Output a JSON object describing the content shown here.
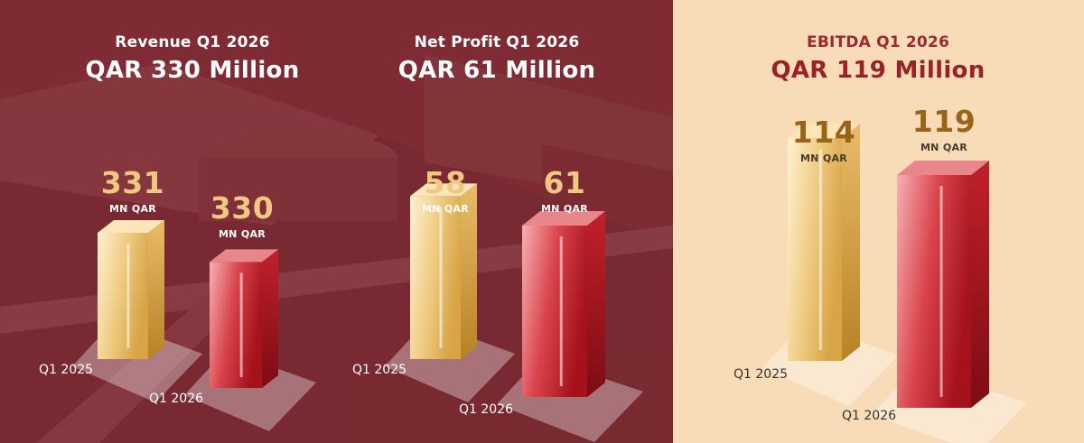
{
  "colors": {
    "maroon_bg": "#7e2c33",
    "cream_bg": "#f8dcb8",
    "gold_bar": "#e5b55e",
    "red_bar": "#b5222b",
    "accent_text_gold": "#f1c882",
    "accent_text_red": "#9a2029"
  },
  "chart_data": [
    {
      "type": "bar",
      "title": "Revenue Q1 2026",
      "subtitle": "QAR 330 Million",
      "categories": [
        "Q1 2025",
        "Q1 2026"
      ],
      "values": [
        331,
        330
      ],
      "value_labels": [
        "331",
        "330"
      ],
      "unit": "MN QAR"
    },
    {
      "type": "bar",
      "title": "Net Profit Q1 2026",
      "subtitle": "QAR 61 Million",
      "categories": [
        "Q1 2025",
        "Q1 2026"
      ],
      "values": [
        58,
        61
      ],
      "value_labels": [
        "58",
        "61"
      ],
      "unit": "MN QAR"
    },
    {
      "type": "bar",
      "title": "EBITDA Q1 2026",
      "subtitle": "QAR 119 Million",
      "categories": [
        "Q1 2025",
        "Q1 2026"
      ],
      "values": [
        114,
        119
      ],
      "value_labels": [
        "114",
        "119"
      ],
      "unit": "MN QAR"
    }
  ]
}
